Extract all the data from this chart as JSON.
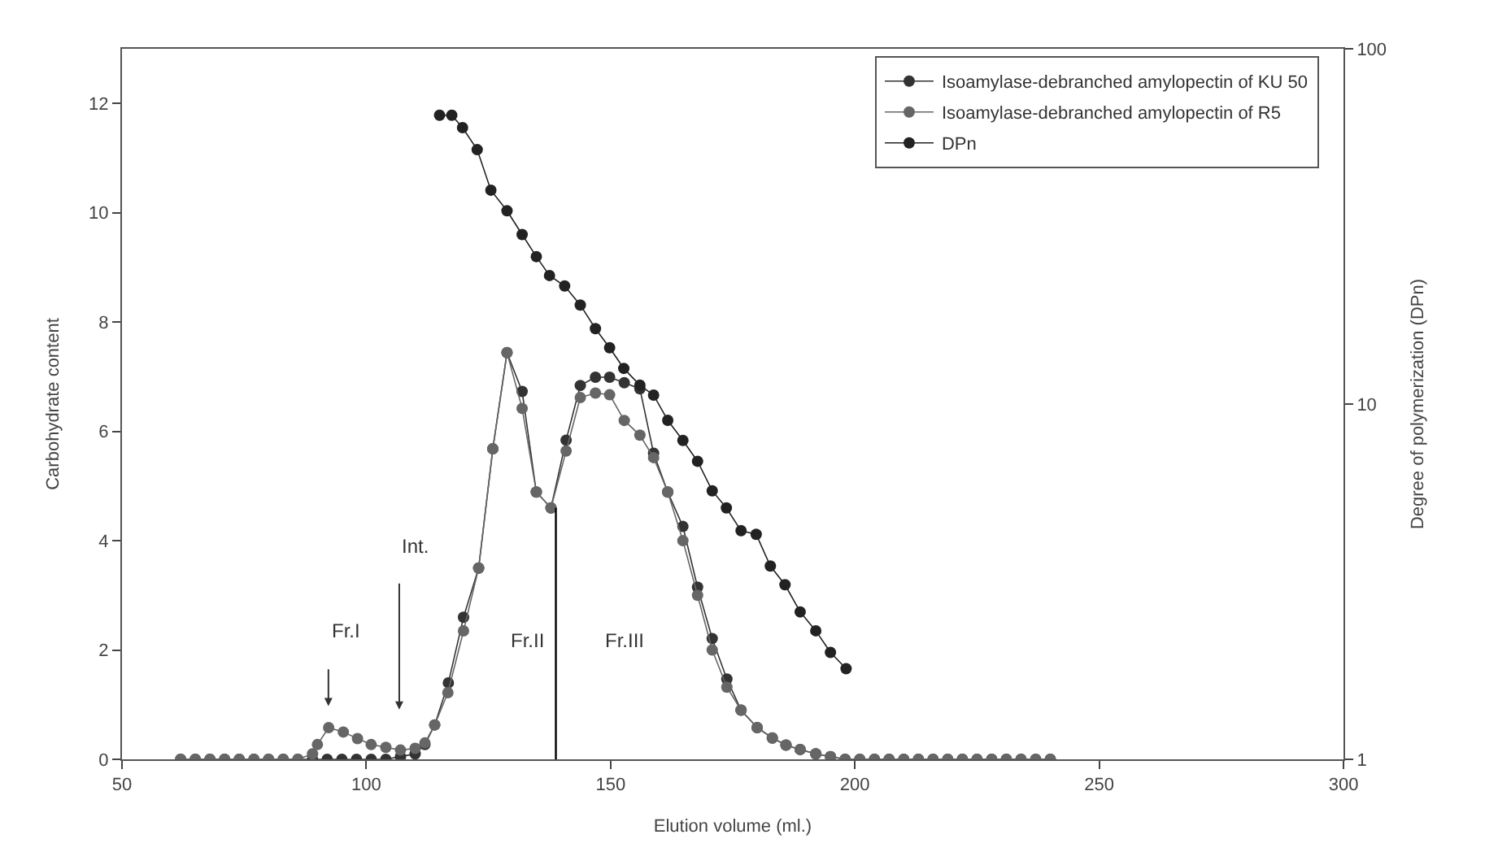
{
  "chart_data": {
    "type": "line",
    "xlabel": "Elution volume (ml.)",
    "ylabel": "Carbohydrate content",
    "y2label": "Degree of polymerization (DPn)",
    "xlim": [
      50,
      300
    ],
    "xticks": [
      50,
      100,
      150,
      200,
      250,
      300
    ],
    "ylim": [
      0,
      13
    ],
    "yticks": [
      0,
      2,
      4,
      6,
      8,
      10,
      12
    ],
    "y2lim": [
      1,
      100
    ],
    "y2ticks": [
      1,
      10,
      100
    ],
    "log": "y2",
    "legend": "top right",
    "marker": "circle",
    "line_style": "solid",
    "series": [
      {
        "name": "Isoamylase-debranched amylopectin of KU 50",
        "color": "#333333",
        "x": [
          62,
          65,
          68,
          71,
          74,
          77,
          80,
          83,
          86,
          89,
          92,
          95,
          98,
          101,
          104,
          107,
          110,
          112,
          114,
          116.8,
          119.9,
          123,
          125.9,
          128.8,
          131.9,
          134.8,
          137.8,
          140.9,
          143.8,
          146.9,
          149.8,
          152.8,
          156,
          158.8,
          161.7,
          164.8,
          167.8,
          170.8,
          173.8,
          176.7,
          180,
          183.1,
          185.9,
          188.8,
          192,
          195,
          198,
          201,
          204,
          207,
          210,
          213,
          216,
          219,
          222,
          225,
          228,
          231,
          234,
          237,
          240
        ],
        "values": [
          0,
          0,
          0,
          0,
          0,
          0,
          0,
          0,
          0,
          0,
          0,
          0,
          0,
          0,
          0,
          0.05,
          0.1,
          0.27,
          0.63,
          1.4,
          2.6,
          3.5,
          5.68,
          7.44,
          6.73,
          4.89,
          4.6,
          5.84,
          6.84,
          6.99,
          6.99,
          6.89,
          6.78,
          5.6,
          4.89,
          4.26,
          3.15,
          2.21,
          1.47,
          0.9,
          0.58,
          0.39,
          0.26,
          0.18,
          0.1,
          0.05,
          0,
          0,
          0,
          0,
          0,
          0,
          0,
          0,
          0,
          0,
          0,
          0,
          0,
          0,
          0
        ]
      },
      {
        "name": "Isoamylase-debranched amylopectin of R5",
        "color": "#666666",
        "x": [
          62,
          65,
          68,
          71,
          74,
          77,
          80,
          83,
          86,
          89,
          90,
          92.3,
          95.3,
          98.2,
          101,
          104,
          107,
          110,
          112,
          114,
          116.7,
          119.9,
          123,
          125.9,
          128.8,
          131.9,
          134.8,
          137.8,
          140.9,
          143.8,
          146.9,
          149.8,
          152.8,
          156,
          158.8,
          161.7,
          164.8,
          167.8,
          170.8,
          173.8,
          176.7,
          180,
          183.1,
          185.9,
          188.8,
          192,
          195,
          198,
          201,
          204,
          207,
          210,
          213,
          216,
          219,
          222,
          225,
          228,
          231,
          234,
          237,
          240
        ],
        "values": [
          0,
          0,
          0,
          0,
          0,
          0,
          0,
          0,
          0,
          0.1,
          0.27,
          0.58,
          0.5,
          0.38,
          0.27,
          0.22,
          0.17,
          0.2,
          0.3,
          0.63,
          1.22,
          2.35,
          3.5,
          5.68,
          7.44,
          6.42,
          4.89,
          4.6,
          5.64,
          6.62,
          6.7,
          6.67,
          6.2,
          5.93,
          5.52,
          4.89,
          4.0,
          3.0,
          2.0,
          1.32,
          0.9,
          0.58,
          0.39,
          0.26,
          0.18,
          0.1,
          0.05,
          0,
          0,
          0,
          0,
          0,
          0,
          0,
          0,
          0,
          0,
          0,
          0,
          0,
          0,
          0
        ]
      },
      {
        "name": "DPn",
        "color": "#222222",
        "axis": "y2",
        "x": [
          115,
          117.5,
          119.7,
          122.7,
          125.5,
          128.8,
          131.9,
          134.8,
          137.5,
          140.6,
          143.8,
          146.9,
          149.8,
          152.7,
          156,
          158.8,
          161.7,
          164.8,
          167.8,
          170.8,
          173.7,
          176.7,
          179.8,
          182.7,
          185.7,
          188.8,
          192,
          195,
          198.2
        ],
        "values": [
          65,
          65,
          60,
          52,
          40,
          35,
          30,
          26,
          23,
          21.5,
          19,
          16.3,
          14.4,
          12.6,
          11.3,
          10.6,
          9,
          7.9,
          6.9,
          5.7,
          5.1,
          4.4,
          4.3,
          3.5,
          3.1,
          2.6,
          2.3,
          2.0,
          1.8
        ]
      },
      {
        "type": "line",
        "color": "#000000",
        "marker": "none",
        "x": [
          138.8,
          138.8
        ],
        "values": [
          0,
          4.6
        ]
      }
    ],
    "annotations": [
      "Fr.I",
      "Int.",
      "Fr.II",
      "Fr.III"
    ]
  }
}
